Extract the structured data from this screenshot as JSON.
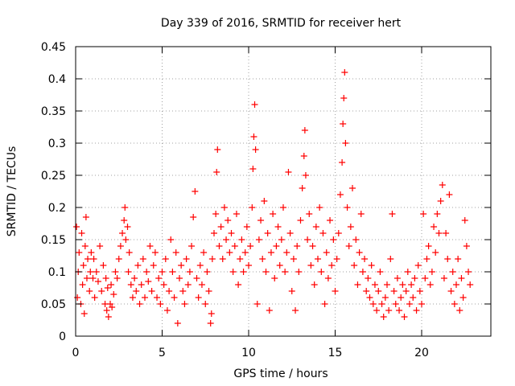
{
  "chart_data": {
    "type": "scatter",
    "title": "Day 339 of 2016, SRMTID for receiver hert",
    "xlabel": "GPS time / hours",
    "ylabel": "SRMTID / TECUs",
    "xlim": [
      0,
      24
    ],
    "ylim": [
      0,
      0.45
    ],
    "xticks": [
      0,
      5,
      10,
      15,
      20
    ],
    "xtick_labels": [
      "0",
      "5",
      "10",
      "15",
      "20"
    ],
    "yticks": [
      0,
      0.05,
      0.1,
      0.15,
      0.2,
      0.25,
      0.3,
      0.35,
      0.4,
      0.45
    ],
    "ytick_labels": [
      "0",
      "0.05",
      "0.1",
      "0.15",
      "0.2",
      "0.25",
      "0.3",
      "0.35",
      "0.4",
      "0.45"
    ],
    "grid": true,
    "marker": "+",
    "color": "#ff0000",
    "series": [
      {
        "name": "SRMTID",
        "points": [
          [
            0.05,
            0.17
          ],
          [
            0.1,
            0.06
          ],
          [
            0.15,
            0.1
          ],
          [
            0.2,
            0.13
          ],
          [
            0.3,
            0.05
          ],
          [
            0.35,
            0.16
          ],
          [
            0.4,
            0.08
          ],
          [
            0.45,
            0.11
          ],
          [
            0.5,
            0.035
          ],
          [
            0.55,
            0.14
          ],
          [
            0.6,
            0.185
          ],
          [
            0.65,
            0.09
          ],
          [
            0.7,
            0.12
          ],
          [
            0.8,
            0.07
          ],
          [
            0.85,
            0.1
          ],
          [
            0.9,
            0.13
          ],
          [
            1.0,
            0.09
          ],
          [
            1.05,
            0.12
          ],
          [
            1.1,
            0.06
          ],
          [
            1.2,
            0.1
          ],
          [
            1.3,
            0.085
          ],
          [
            1.4,
            0.14
          ],
          [
            1.5,
            0.07
          ],
          [
            1.6,
            0.11
          ],
          [
            1.7,
            0.05
          ],
          [
            1.75,
            0.09
          ],
          [
            1.8,
            0.04
          ],
          [
            1.85,
            0.075
          ],
          [
            1.9,
            0.03
          ],
          [
            2.0,
            0.05
          ],
          [
            2.05,
            0.08
          ],
          [
            2.1,
            0.045
          ],
          [
            2.2,
            0.065
          ],
          [
            2.3,
            0.1
          ],
          [
            2.4,
            0.09
          ],
          [
            2.5,
            0.12
          ],
          [
            2.6,
            0.14
          ],
          [
            2.7,
            0.16
          ],
          [
            2.8,
            0.18
          ],
          [
            2.85,
            0.2
          ],
          [
            2.9,
            0.15
          ],
          [
            3.0,
            0.17
          ],
          [
            3.05,
            0.1
          ],
          [
            3.1,
            0.13
          ],
          [
            3.2,
            0.08
          ],
          [
            3.3,
            0.06
          ],
          [
            3.4,
            0.09
          ],
          [
            3.5,
            0.07
          ],
          [
            3.6,
            0.11
          ],
          [
            3.7,
            0.05
          ],
          [
            3.8,
            0.08
          ],
          [
            3.9,
            0.12
          ],
          [
            4.0,
            0.06
          ],
          [
            4.1,
            0.1
          ],
          [
            4.2,
            0.085
          ],
          [
            4.3,
            0.14
          ],
          [
            4.4,
            0.07
          ],
          [
            4.5,
            0.11
          ],
          [
            4.6,
            0.13
          ],
          [
            4.7,
            0.06
          ],
          [
            4.8,
            0.09
          ],
          [
            4.9,
            0.05
          ],
          [
            5.0,
            0.1
          ],
          [
            5.1,
            0.08
          ],
          [
            5.2,
            0.12
          ],
          [
            5.3,
            0.04
          ],
          [
            5.4,
            0.07
          ],
          [
            5.5,
            0.15
          ],
          [
            5.6,
            0.1
          ],
          [
            5.7,
            0.06
          ],
          [
            5.8,
            0.13
          ],
          [
            5.9,
            0.02
          ],
          [
            6.0,
            0.09
          ],
          [
            6.1,
            0.11
          ],
          [
            6.2,
            0.07
          ],
          [
            6.3,
            0.05
          ],
          [
            6.4,
            0.12
          ],
          [
            6.5,
            0.08
          ],
          [
            6.6,
            0.1
          ],
          [
            6.7,
            0.14
          ],
          [
            6.8,
            0.185
          ],
          [
            6.9,
            0.225
          ],
          [
            7.0,
            0.09
          ],
          [
            7.1,
            0.06
          ],
          [
            7.2,
            0.11
          ],
          [
            7.3,
            0.08
          ],
          [
            7.4,
            0.13
          ],
          [
            7.5,
            0.05
          ],
          [
            7.6,
            0.1
          ],
          [
            7.7,
            0.07
          ],
          [
            7.8,
            0.02
          ],
          [
            7.85,
            0.035
          ],
          [
            7.9,
            0.12
          ],
          [
            8.0,
            0.16
          ],
          [
            8.1,
            0.19
          ],
          [
            8.15,
            0.255
          ],
          [
            8.2,
            0.29
          ],
          [
            8.3,
            0.14
          ],
          [
            8.4,
            0.17
          ],
          [
            8.5,
            0.12
          ],
          [
            8.6,
            0.2
          ],
          [
            8.7,
            0.15
          ],
          [
            8.8,
            0.18
          ],
          [
            8.9,
            0.13
          ],
          [
            9.0,
            0.16
          ],
          [
            9.1,
            0.1
          ],
          [
            9.2,
            0.14
          ],
          [
            9.3,
            0.19
          ],
          [
            9.4,
            0.08
          ],
          [
            9.5,
            0.12
          ],
          [
            9.6,
            0.15
          ],
          [
            9.7,
            0.1
          ],
          [
            9.8,
            0.13
          ],
          [
            9.9,
            0.17
          ],
          [
            10.0,
            0.11
          ],
          [
            10.1,
            0.14
          ],
          [
            10.2,
            0.2
          ],
          [
            10.25,
            0.26
          ],
          [
            10.3,
            0.31
          ],
          [
            10.35,
            0.36
          ],
          [
            10.4,
            0.29
          ],
          [
            10.5,
            0.05
          ],
          [
            10.6,
            0.15
          ],
          [
            10.7,
            0.18
          ],
          [
            10.8,
            0.12
          ],
          [
            10.9,
            0.21
          ],
          [
            11.0,
            0.1
          ],
          [
            11.1,
            0.16
          ],
          [
            11.2,
            0.04
          ],
          [
            11.3,
            0.13
          ],
          [
            11.4,
            0.19
          ],
          [
            11.5,
            0.09
          ],
          [
            11.6,
            0.14
          ],
          [
            11.7,
            0.17
          ],
          [
            11.8,
            0.11
          ],
          [
            11.9,
            0.15
          ],
          [
            12.0,
            0.2
          ],
          [
            12.1,
            0.1
          ],
          [
            12.2,
            0.13
          ],
          [
            12.3,
            0.255
          ],
          [
            12.4,
            0.16
          ],
          [
            12.5,
            0.07
          ],
          [
            12.6,
            0.12
          ],
          [
            12.7,
            0.04
          ],
          [
            12.8,
            0.14
          ],
          [
            12.9,
            0.1
          ],
          [
            13.0,
            0.18
          ],
          [
            13.1,
            0.23
          ],
          [
            13.2,
            0.28
          ],
          [
            13.25,
            0.32
          ],
          [
            13.3,
            0.25
          ],
          [
            13.4,
            0.15
          ],
          [
            13.5,
            0.19
          ],
          [
            13.6,
            0.11
          ],
          [
            13.7,
            0.14
          ],
          [
            13.8,
            0.08
          ],
          [
            13.9,
            0.17
          ],
          [
            14.0,
            0.12
          ],
          [
            14.1,
            0.2
          ],
          [
            14.2,
            0.1
          ],
          [
            14.3,
            0.16
          ],
          [
            14.4,
            0.05
          ],
          [
            14.5,
            0.13
          ],
          [
            14.6,
            0.09
          ],
          [
            14.7,
            0.18
          ],
          [
            14.8,
            0.11
          ],
          [
            14.9,
            0.15
          ],
          [
            15.0,
            0.07
          ],
          [
            15.1,
            0.12
          ],
          [
            15.2,
            0.16
          ],
          [
            15.3,
            0.22
          ],
          [
            15.4,
            0.27
          ],
          [
            15.45,
            0.33
          ],
          [
            15.5,
            0.37
          ],
          [
            15.55,
            0.41
          ],
          [
            15.6,
            0.3
          ],
          [
            15.7,
            0.2
          ],
          [
            15.8,
            0.14
          ],
          [
            15.9,
            0.17
          ],
          [
            16.0,
            0.23
          ],
          [
            16.1,
            0.11
          ],
          [
            16.2,
            0.15
          ],
          [
            16.3,
            0.08
          ],
          [
            16.4,
            0.13
          ],
          [
            16.5,
            0.19
          ],
          [
            16.6,
            0.1
          ],
          [
            16.7,
            0.12
          ],
          [
            16.8,
            0.07
          ],
          [
            16.9,
            0.09
          ],
          [
            17.0,
            0.06
          ],
          [
            17.1,
            0.11
          ],
          [
            17.2,
            0.05
          ],
          [
            17.3,
            0.08
          ],
          [
            17.4,
            0.04
          ],
          [
            17.5,
            0.07
          ],
          [
            17.6,
            0.1
          ],
          [
            17.7,
            0.05
          ],
          [
            17.8,
            0.03
          ],
          [
            17.9,
            0.06
          ],
          [
            18.0,
            0.08
          ],
          [
            18.1,
            0.04
          ],
          [
            18.2,
            0.12
          ],
          [
            18.3,
            0.19
          ],
          [
            18.4,
            0.07
          ],
          [
            18.5,
            0.05
          ],
          [
            18.6,
            0.09
          ],
          [
            18.7,
            0.04
          ],
          [
            18.8,
            0.06
          ],
          [
            18.9,
            0.08
          ],
          [
            19.0,
            0.03
          ],
          [
            19.1,
            0.07
          ],
          [
            19.2,
            0.1
          ],
          [
            19.3,
            0.05
          ],
          [
            19.4,
            0.08
          ],
          [
            19.5,
            0.06
          ],
          [
            19.6,
            0.09
          ],
          [
            19.7,
            0.04
          ],
          [
            19.8,
            0.11
          ],
          [
            19.9,
            0.07
          ],
          [
            20.0,
            0.05
          ],
          [
            20.1,
            0.19
          ],
          [
            20.2,
            0.09
          ],
          [
            20.3,
            0.12
          ],
          [
            20.4,
            0.14
          ],
          [
            20.5,
            0.08
          ],
          [
            20.6,
            0.1
          ],
          [
            20.7,
            0.17
          ],
          [
            20.8,
            0.13
          ],
          [
            20.9,
            0.19
          ],
          [
            21.0,
            0.16
          ],
          [
            21.1,
            0.21
          ],
          [
            21.2,
            0.235
          ],
          [
            21.3,
            0.09
          ],
          [
            21.4,
            0.16
          ],
          [
            21.5,
            0.12
          ],
          [
            21.6,
            0.22
          ],
          [
            21.7,
            0.07
          ],
          [
            21.8,
            0.1
          ],
          [
            21.9,
            0.05
          ],
          [
            22.0,
            0.08
          ],
          [
            22.1,
            0.12
          ],
          [
            22.2,
            0.04
          ],
          [
            22.3,
            0.09
          ],
          [
            22.4,
            0.06
          ],
          [
            22.5,
            0.18
          ],
          [
            22.6,
            0.14
          ],
          [
            22.7,
            0.1
          ],
          [
            22.8,
            0.08
          ]
        ]
      }
    ]
  }
}
